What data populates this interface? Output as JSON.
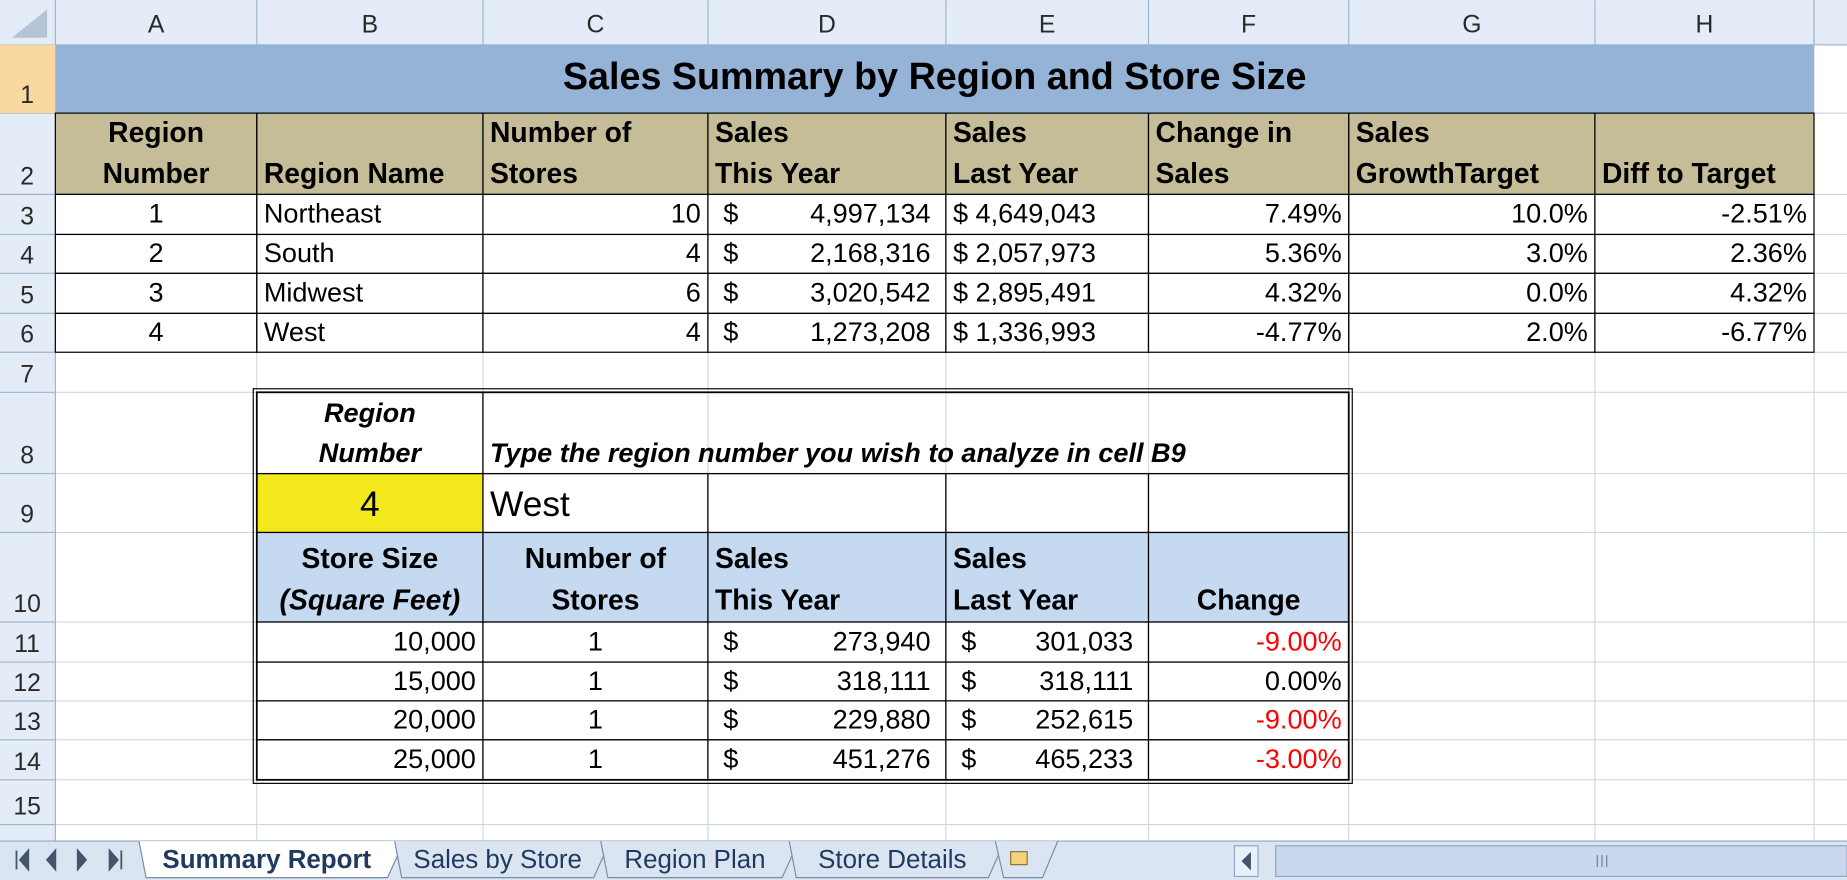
{
  "column_headers": [
    "A",
    "B",
    "C",
    "D",
    "E",
    "F",
    "G",
    "H"
  ],
  "row_headers": [
    "1",
    "2",
    "3",
    "4",
    "5",
    "6",
    "7",
    "8",
    "9",
    "10",
    "11",
    "12",
    "13",
    "14",
    "15"
  ],
  "sheet": {
    "title": "Sales Summary by Region and Store Size",
    "summary_headers": [
      [
        "Region",
        "Number"
      ],
      [
        "Region Name"
      ],
      [
        "Number of",
        "Stores"
      ],
      [
        "Sales",
        "This Year"
      ],
      [
        "Sales",
        "Last Year"
      ],
      [
        "Change in",
        "Sales"
      ],
      [
        "Sales",
        "GrowthTarget"
      ],
      [
        "Diff to Target"
      ]
    ],
    "summary_rows": [
      [
        "1",
        "Northeast",
        "10",
        [
          "$",
          "4,997,134"
        ],
        "$ 4,649,043",
        "7.49%",
        "10.0%",
        "-2.51%"
      ],
      [
        "2",
        "South",
        "4",
        [
          "$",
          "2,168,316"
        ],
        "$ 2,057,973",
        "5.36%",
        "3.0%",
        "2.36%"
      ],
      [
        "3",
        "Midwest",
        "6",
        [
          "$",
          "3,020,542"
        ],
        "$ 2,895,491",
        "4.32%",
        "0.0%",
        "4.32%"
      ],
      [
        "4",
        "West",
        "4",
        [
          "$",
          "1,273,208"
        ],
        "$ 1,336,993",
        "-4.77%",
        "2.0%",
        "-6.77%"
      ]
    ],
    "analysis": {
      "region_label": [
        "Region",
        "Number"
      ],
      "instruction": "Type the region number you wish to analyze in cell B9",
      "selected_region": "4",
      "selected_name": "West",
      "headers": [
        [
          "Store Size",
          "(Square Feet)"
        ],
        [
          "Number of",
          "Stores"
        ],
        [
          "Sales",
          "This Year"
        ],
        [
          "Sales",
          "Last Year"
        ],
        [
          "Change"
        ]
      ],
      "rows": [
        [
          "10,000",
          "1",
          [
            "$",
            "273,940"
          ],
          [
            "$",
            "301,033"
          ],
          "-9.00%"
        ],
        [
          "15,000",
          "1",
          [
            "$",
            "318,111"
          ],
          [
            "$",
            "318,111"
          ],
          "0.00%"
        ],
        [
          "20,000",
          "1",
          [
            "$",
            "229,880"
          ],
          [
            "$",
            "252,615"
          ],
          "-9.00%"
        ],
        [
          "25,000",
          "1",
          [
            "$",
            "451,276"
          ],
          [
            "$",
            "465,233"
          ],
          "-3.00%"
        ]
      ],
      "negative_color": "#ff0000"
    }
  },
  "tabs": [
    "Summary Report",
    "Sales by Store",
    "Region Plan",
    "Store Details"
  ],
  "active_tab": 0
}
